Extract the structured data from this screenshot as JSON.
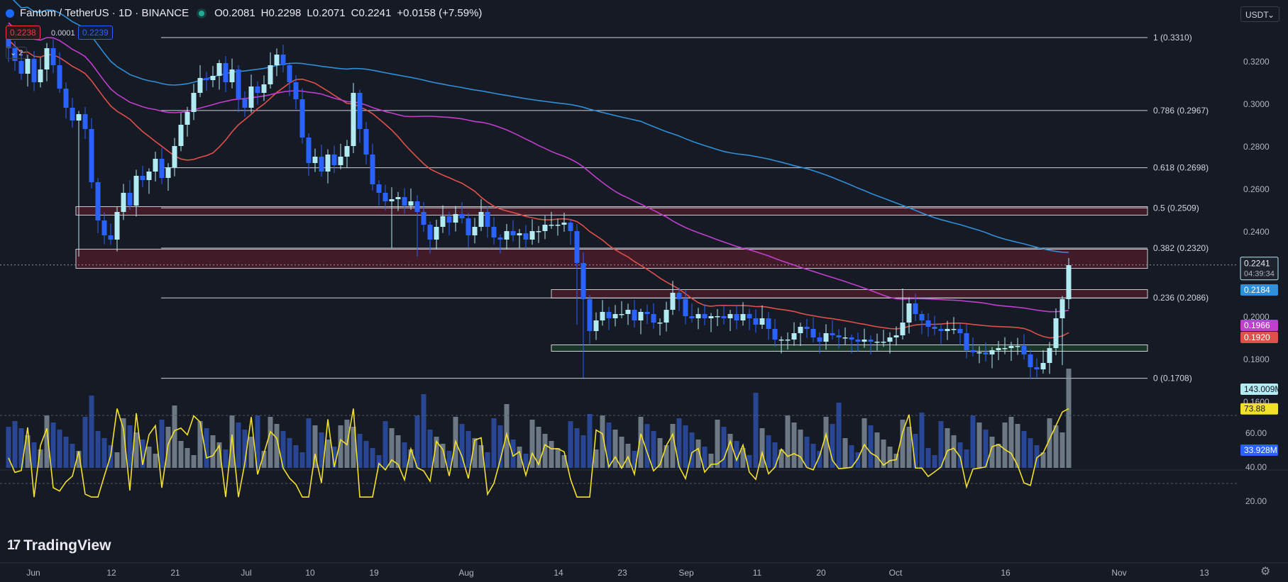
{
  "header": {
    "symbol": "Fantom / TetherUS · 1D · BINANCE",
    "open": "O0.2081",
    "high": "H0.2298",
    "low": "L0.2071",
    "close": "C0.2241",
    "change": "+0.0158 (+7.59%)",
    "bid": "0.2238",
    "spread": "0.0001",
    "ask": "0.2239",
    "indicator_count": "2",
    "currency": "USDT"
  },
  "logo": "TradingView",
  "colors": {
    "up": "#b2ebf2",
    "down": "#2962ff",
    "ma_fast": "#e0504a",
    "ma_mid": "#c23ecf",
    "ma_slow": "#2f8fd8",
    "rsi": "#f2e02c",
    "zone": "#4a1c2a",
    "support_zone": "#1b3a2a"
  },
  "chart_data": {
    "type": "candlestick",
    "price_axis": [
      "0.3200",
      "0.3000",
      "0.2800",
      "0.2600",
      "0.2400",
      "0.2000",
      "0.1800",
      "0.1600"
    ],
    "x_axis": [
      "Jun",
      "12",
      "21",
      "Jul",
      "10",
      "19",
      "Aug",
      "14",
      "23",
      "Sep",
      "11",
      "20",
      "Oct",
      "16",
      "Nov",
      "13"
    ],
    "fib_levels": [
      {
        "label": "1 (0.3310)",
        "value": 0.331
      },
      {
        "label": "0.786 (0.2967)",
        "value": 0.2967
      },
      {
        "label": "0.618 (0.2698)",
        "value": 0.2698
      },
      {
        "label": "0.5 (0.2509)",
        "value": 0.2509
      },
      {
        "label": "0.382 (0.2320)",
        "value": 0.232
      },
      {
        "label": "0.236 (0.2086)",
        "value": 0.2086
      },
      {
        "label": "0 (0.1708)",
        "value": 0.1708
      }
    ],
    "zones": [
      {
        "from": 0.2475,
        "to": 0.2515,
        "type": "resistance"
      },
      {
        "from": 0.2225,
        "to": 0.2315,
        "type": "resistance"
      },
      {
        "from": 0.2085,
        "to": 0.2125,
        "type": "resistance"
      },
      {
        "from": 0.1835,
        "to": 0.1865,
        "type": "support"
      }
    ],
    "closes": [
      0.326,
      0.32,
      0.314,
      0.321,
      0.31,
      0.316,
      0.326,
      0.318,
      0.307,
      0.298,
      0.292,
      0.295,
      0.288,
      0.263,
      0.245,
      0.238,
      0.236,
      0.249,
      0.258,
      0.252,
      0.266,
      0.264,
      0.268,
      0.274,
      0.265,
      0.27,
      0.28,
      0.29,
      0.296,
      0.305,
      0.312,
      0.311,
      0.313,
      0.319,
      0.31,
      0.316,
      0.302,
      0.298,
      0.308,
      0.305,
      0.309,
      0.318,
      0.323,
      0.318,
      0.31,
      0.302,
      0.284,
      0.272,
      0.275,
      0.268,
      0.276,
      0.271,
      0.275,
      0.28,
      0.305,
      0.288,
      0.276,
      0.262,
      0.258,
      0.254,
      0.255,
      0.256,
      0.252,
      0.254,
      0.249,
      0.243,
      0.236,
      0.242,
      0.247,
      0.244,
      0.248,
      0.246,
      0.238,
      0.242,
      0.249,
      0.242,
      0.237,
      0.236,
      0.24,
      0.238,
      0.239,
      0.236,
      0.24,
      0.24,
      0.243,
      0.243,
      0.243,
      0.244,
      0.24,
      0.225,
      0.208,
      0.193,
      0.198,
      0.202,
      0.199,
      0.201,
      0.201,
      0.203,
      0.198,
      0.202,
      0.201,
      0.197,
      0.197,
      0.203,
      0.211,
      0.208,
      0.2,
      0.199,
      0.201,
      0.199,
      0.2,
      0.2,
      0.199,
      0.201,
      0.198,
      0.201,
      0.199,
      0.196,
      0.199,
      0.194,
      0.189,
      0.189,
      0.189,
      0.192,
      0.195,
      0.194,
      0.19,
      0.188,
      0.192,
      0.191,
      0.19,
      0.19,
      0.189,
      0.188,
      0.189,
      0.188,
      0.188,
      0.188,
      0.19,
      0.191,
      0.197,
      0.206,
      0.201,
      0.198,
      0.195,
      0.194,
      0.193,
      0.194,
      0.194,
      0.192,
      0.184,
      0.183,
      0.183,
      0.182,
      0.184,
      0.185,
      0.185,
      0.186,
      0.186,
      0.182,
      0.176,
      0.175,
      0.178,
      0.185,
      0.199,
      0.208,
      0.224
    ],
    "series": [
      {
        "name": "",
        "label": "0.2184",
        "color": "#2f8fd8"
      },
      {
        "name": "",
        "label": "0.1966",
        "color": "#c23ecf"
      },
      {
        "name": "",
        "label": "0.1920",
        "color": "#e0504a"
      }
    ],
    "last_price_label": "0.2241",
    "countdown": "04:39:34",
    "volume_label": "143.009M",
    "volume_ma_label": "33.928M",
    "rsi": {
      "label": "73.88",
      "axis": [
        "60.00",
        "40.00",
        "20.00"
      ],
      "upper": 70,
      "lower": 30
    }
  }
}
